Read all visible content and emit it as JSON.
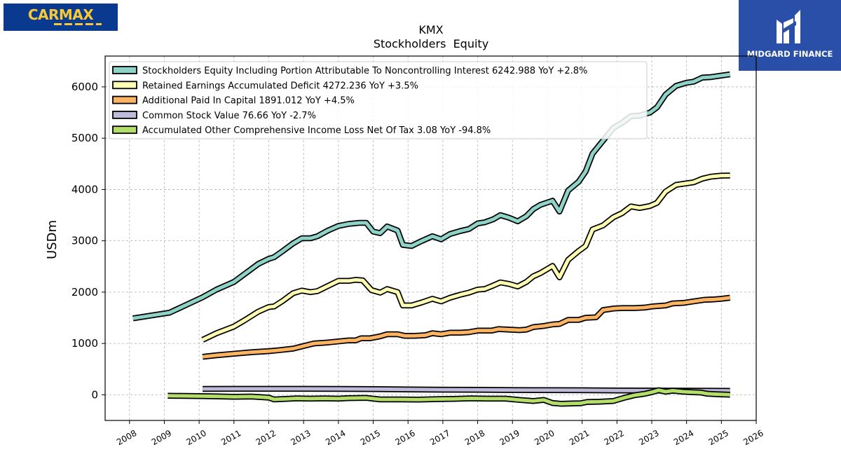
{
  "logos": {
    "left": {
      "text": "CARMAX",
      "bg": "#0a3a8f",
      "fg": "#f6c935"
    },
    "right": {
      "text": "MIDGARD FINANCE",
      "bg": "#2a4fa8",
      "fg": "#ffffff"
    }
  },
  "chart_data": {
    "type": "line",
    "title": "KMX",
    "subtitle": "Stockholders  Equity",
    "xlabel": "",
    "ylabel": "USDm",
    "xlim": [
      2007.3,
      2026
    ],
    "ylim": [
      -500,
      6600
    ],
    "x_ticks": [
      2008,
      2009,
      2010,
      2011,
      2012,
      2013,
      2014,
      2015,
      2016,
      2017,
      2018,
      2019,
      2020,
      2021,
      2022,
      2023,
      2024,
      2025,
      2026
    ],
    "y_ticks": [
      0,
      1000,
      2000,
      3000,
      4000,
      5000,
      6000
    ],
    "grid": true,
    "legend_position": "top-left",
    "series": [
      {
        "name": "Stockholders Equity Including Portion Attributable To Noncontrolling Interest",
        "legend": "Stockholders Equity Including Portion Attributable To Noncontrolling Interest  6242.988 YoY +2.8%",
        "color": "#8dd3c7",
        "points": [
          [
            2008.1,
            1490
          ],
          [
            2009.15,
            1600
          ],
          [
            2010.1,
            1900
          ],
          [
            2010.5,
            2050
          ],
          [
            2011.0,
            2200
          ],
          [
            2011.3,
            2350
          ],
          [
            2011.7,
            2550
          ],
          [
            2012.0,
            2650
          ],
          [
            2012.15,
            2680
          ],
          [
            2012.4,
            2800
          ],
          [
            2012.7,
            2950
          ],
          [
            2012.95,
            3050
          ],
          [
            2013.2,
            3050
          ],
          [
            2013.4,
            3090
          ],
          [
            2013.7,
            3200
          ],
          [
            2014.0,
            3290
          ],
          [
            2014.3,
            3330
          ],
          [
            2014.6,
            3350
          ],
          [
            2014.8,
            3350
          ],
          [
            2015.0,
            3180
          ],
          [
            2015.2,
            3150
          ],
          [
            2015.4,
            3280
          ],
          [
            2015.7,
            3200
          ],
          [
            2015.85,
            2920
          ],
          [
            2016.1,
            2900
          ],
          [
            2016.4,
            3000
          ],
          [
            2016.7,
            3090
          ],
          [
            2016.95,
            3030
          ],
          [
            2017.2,
            3130
          ],
          [
            2017.5,
            3190
          ],
          [
            2017.75,
            3230
          ],
          [
            2018.0,
            3340
          ],
          [
            2018.2,
            3360
          ],
          [
            2018.45,
            3420
          ],
          [
            2018.65,
            3500
          ],
          [
            2018.9,
            3450
          ],
          [
            2019.15,
            3380
          ],
          [
            2019.4,
            3480
          ],
          [
            2019.6,
            3620
          ],
          [
            2019.8,
            3700
          ],
          [
            2020.15,
            3780
          ],
          [
            2020.35,
            3570
          ],
          [
            2020.6,
            3980
          ],
          [
            2020.9,
            4150
          ],
          [
            2021.1,
            4350
          ],
          [
            2021.3,
            4700
          ],
          [
            2021.6,
            4950
          ],
          [
            2021.9,
            5200
          ],
          [
            2022.15,
            5300
          ],
          [
            2022.4,
            5430
          ],
          [
            2022.65,
            5440
          ],
          [
            2022.95,
            5500
          ],
          [
            2023.15,
            5600
          ],
          [
            2023.4,
            5850
          ],
          [
            2023.7,
            6020
          ],
          [
            2024.0,
            6080
          ],
          [
            2024.2,
            6100
          ],
          [
            2024.45,
            6180
          ],
          [
            2024.7,
            6190
          ],
          [
            2025.0,
            6220
          ],
          [
            2025.25,
            6243
          ]
        ]
      },
      {
        "name": "Retained Earnings Accumulated Deficit",
        "legend": "Retained Earnings Accumulated Deficit  4272.236 YoY +3.5%",
        "color": "#ffffb3",
        "points": [
          [
            2010.1,
            1070
          ],
          [
            2010.5,
            1200
          ],
          [
            2011.0,
            1330
          ],
          [
            2011.3,
            1450
          ],
          [
            2011.7,
            1620
          ],
          [
            2012.0,
            1710
          ],
          [
            2012.15,
            1720
          ],
          [
            2012.4,
            1830
          ],
          [
            2012.7,
            1980
          ],
          [
            2012.95,
            2030
          ],
          [
            2013.2,
            2000
          ],
          [
            2013.4,
            2020
          ],
          [
            2013.7,
            2120
          ],
          [
            2014.0,
            2220
          ],
          [
            2014.3,
            2220
          ],
          [
            2014.5,
            2240
          ],
          [
            2014.7,
            2230
          ],
          [
            2014.95,
            2040
          ],
          [
            2015.2,
            1990
          ],
          [
            2015.4,
            2060
          ],
          [
            2015.7,
            2000
          ],
          [
            2015.85,
            1740
          ],
          [
            2016.1,
            1740
          ],
          [
            2016.4,
            1800
          ],
          [
            2016.7,
            1870
          ],
          [
            2016.95,
            1820
          ],
          [
            2017.2,
            1890
          ],
          [
            2017.5,
            1950
          ],
          [
            2017.75,
            1990
          ],
          [
            2018.0,
            2050
          ],
          [
            2018.2,
            2060
          ],
          [
            2018.45,
            2130
          ],
          [
            2018.65,
            2190
          ],
          [
            2018.9,
            2160
          ],
          [
            2019.15,
            2110
          ],
          [
            2019.4,
            2200
          ],
          [
            2019.6,
            2310
          ],
          [
            2019.8,
            2370
          ],
          [
            2020.15,
            2510
          ],
          [
            2020.35,
            2290
          ],
          [
            2020.6,
            2630
          ],
          [
            2020.9,
            2800
          ],
          [
            2021.1,
            2900
          ],
          [
            2021.3,
            3220
          ],
          [
            2021.6,
            3300
          ],
          [
            2021.9,
            3460
          ],
          [
            2022.15,
            3540
          ],
          [
            2022.4,
            3670
          ],
          [
            2022.65,
            3640
          ],
          [
            2022.95,
            3680
          ],
          [
            2023.15,
            3740
          ],
          [
            2023.4,
            3960
          ],
          [
            2023.7,
            4090
          ],
          [
            2024.0,
            4120
          ],
          [
            2024.2,
            4140
          ],
          [
            2024.45,
            4210
          ],
          [
            2024.7,
            4250
          ],
          [
            2025.0,
            4270
          ],
          [
            2025.25,
            4272
          ]
        ]
      },
      {
        "name": "Additional Paid In Capital",
        "legend": "Additional Paid In Capital  1891.012 YoY +4.5%",
        "color": "#fdb462",
        "points": [
          [
            2010.1,
            740
          ],
          [
            2010.5,
            770
          ],
          [
            2011.0,
            800
          ],
          [
            2011.5,
            830
          ],
          [
            2012.0,
            850
          ],
          [
            2012.3,
            870
          ],
          [
            2012.7,
            900
          ],
          [
            2013.0,
            950
          ],
          [
            2013.3,
            1000
          ],
          [
            2013.7,
            1020
          ],
          [
            2014.0,
            1040
          ],
          [
            2014.3,
            1060
          ],
          [
            2014.5,
            1060
          ],
          [
            2014.65,
            1100
          ],
          [
            2014.9,
            1100
          ],
          [
            2015.2,
            1140
          ],
          [
            2015.4,
            1180
          ],
          [
            2015.7,
            1180
          ],
          [
            2015.9,
            1150
          ],
          [
            2016.2,
            1150
          ],
          [
            2016.5,
            1160
          ],
          [
            2016.7,
            1200
          ],
          [
            2016.95,
            1180
          ],
          [
            2017.2,
            1210
          ],
          [
            2017.5,
            1210
          ],
          [
            2017.75,
            1220
          ],
          [
            2018.0,
            1250
          ],
          [
            2018.4,
            1250
          ],
          [
            2018.6,
            1280
          ],
          [
            2018.9,
            1270
          ],
          [
            2019.2,
            1260
          ],
          [
            2019.4,
            1270
          ],
          [
            2019.6,
            1320
          ],
          [
            2019.9,
            1340
          ],
          [
            2020.15,
            1370
          ],
          [
            2020.35,
            1380
          ],
          [
            2020.6,
            1460
          ],
          [
            2020.9,
            1460
          ],
          [
            2021.1,
            1500
          ],
          [
            2021.4,
            1510
          ],
          [
            2021.6,
            1650
          ],
          [
            2021.9,
            1680
          ],
          [
            2022.15,
            1690
          ],
          [
            2022.5,
            1690
          ],
          [
            2022.8,
            1700
          ],
          [
            2023.0,
            1720
          ],
          [
            2023.4,
            1740
          ],
          [
            2023.6,
            1780
          ],
          [
            2023.9,
            1790
          ],
          [
            2024.2,
            1820
          ],
          [
            2024.5,
            1850
          ],
          [
            2024.8,
            1860
          ],
          [
            2025.0,
            1870
          ],
          [
            2025.25,
            1891
          ]
        ]
      },
      {
        "name": "Common Stock Value",
        "legend": "Common Stock Value  76.66 YoY -2.7%",
        "color": "#bebada",
        "points": [
          [
            2010.1,
            115
          ],
          [
            2011.0,
            116
          ],
          [
            2012.0,
            116
          ],
          [
            2013.0,
            116
          ],
          [
            2014.0,
            114
          ],
          [
            2015.0,
            110
          ],
          [
            2016.0,
            105
          ],
          [
            2017.0,
            100
          ],
          [
            2018.0,
            98
          ],
          [
            2019.0,
            93
          ],
          [
            2020.0,
            90
          ],
          [
            2021.0,
            88
          ],
          [
            2022.0,
            85
          ],
          [
            2023.0,
            82
          ],
          [
            2024.0,
            80
          ],
          [
            2025.25,
            77
          ]
        ]
      },
      {
        "name": "Accumulated Other Comprehensive Income Loss Net Of Tax",
        "legend": "Accumulated Other Comprehensive Income Loss Net Of Tax  3.08 YoY -94.8%",
        "color": "#b3de69",
        "points": [
          [
            2009.1,
            -20
          ],
          [
            2010.0,
            -25
          ],
          [
            2010.5,
            -30
          ],
          [
            2011.0,
            -40
          ],
          [
            2011.5,
            -35
          ],
          [
            2012.0,
            -55
          ],
          [
            2012.15,
            -90
          ],
          [
            2012.5,
            -80
          ],
          [
            2012.8,
            -70
          ],
          [
            2013.2,
            -75
          ],
          [
            2013.6,
            -70
          ],
          [
            2014.0,
            -75
          ],
          [
            2014.3,
            -65
          ],
          [
            2014.8,
            -60
          ],
          [
            2015.2,
            -90
          ],
          [
            2015.8,
            -90
          ],
          [
            2016.3,
            -95
          ],
          [
            2016.8,
            -85
          ],
          [
            2017.3,
            -80
          ],
          [
            2017.8,
            -70
          ],
          [
            2018.3,
            -75
          ],
          [
            2018.8,
            -75
          ],
          [
            2019.2,
            -100
          ],
          [
            2019.6,
            -120
          ],
          [
            2019.9,
            -100
          ],
          [
            2020.15,
            -160
          ],
          [
            2020.4,
            -175
          ],
          [
            2020.7,
            -170
          ],
          [
            2020.95,
            -165
          ],
          [
            2021.15,
            -140
          ],
          [
            2021.5,
            -135
          ],
          [
            2021.9,
            -120
          ],
          [
            2022.2,
            -60
          ],
          [
            2022.5,
            -10
          ],
          [
            2022.8,
            20
          ],
          [
            2023.0,
            50
          ],
          [
            2023.2,
            90
          ],
          [
            2023.4,
            60
          ],
          [
            2023.6,
            80
          ],
          [
            2023.9,
            60
          ],
          [
            2024.2,
            50
          ],
          [
            2024.4,
            45
          ],
          [
            2024.6,
            20
          ],
          [
            2024.9,
            10
          ],
          [
            2025.25,
            3
          ]
        ]
      }
    ]
  }
}
